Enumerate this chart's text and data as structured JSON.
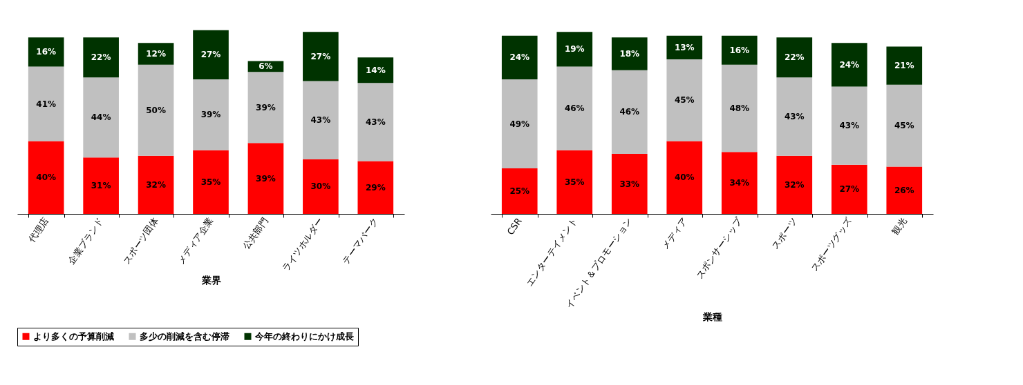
{
  "chart_data": [
    {
      "type": "bar",
      "stacked": true,
      "xlabel": "業界",
      "categories": [
        "代理店",
        "企業ブランド",
        "スポーツ団体",
        "メディア企業",
        "公共部門",
        "ライツホルダー",
        "テーマパーク"
      ],
      "series": [
        {
          "name": "より多くの予算削減",
          "color": "#ff0000",
          "values": [
            40,
            31,
            32,
            35,
            39,
            30,
            29
          ],
          "value_labels": [
            "40%",
            "31%",
            "32%",
            "35%",
            "39%",
            "30%",
            "29%"
          ]
        },
        {
          "name": "多少の削減を含む停滞",
          "color": "#c0c0c0",
          "values": [
            41,
            44,
            50,
            39,
            39,
            43,
            43
          ],
          "value_labels": [
            "41%",
            "44%",
            "50%",
            "39%",
            "39%",
            "43%",
            "43%"
          ]
        },
        {
          "name": "今年の終わりにかけ成長",
          "color": "#003300",
          "values": [
            16,
            22,
            12,
            27,
            6,
            27,
            14
          ],
          "value_labels": [
            "16%",
            "22%",
            "12%",
            "27%",
            "6%",
            "27%",
            "14%"
          ]
        }
      ],
      "legend": "bottom",
      "tick_labels": "x"
    },
    {
      "type": "bar",
      "stacked": true,
      "xlabel": "業種",
      "categories": [
        "CSR",
        "エンターテイメント",
        "イベント＆プロモーション",
        "メディア",
        "スポンサーシップ",
        "スポーツ",
        "スポーツグッズ",
        "観光"
      ],
      "series": [
        {
          "name": "より多くの予算削減",
          "color": "#ff0000",
          "values": [
            25,
            35,
            33,
            40,
            34,
            32,
            27,
            26
          ],
          "value_labels": [
            "25%",
            "35%",
            "33%",
            "40%",
            "34%",
            "32%",
            "27%",
            "26%"
          ]
        },
        {
          "name": "多少の削減を含む停滞",
          "color": "#c0c0c0",
          "values": [
            49,
            46,
            46,
            45,
            48,
            43,
            43,
            45
          ],
          "value_labels": [
            "49%",
            "46%",
            "46%",
            "45%",
            "48%",
            "43%",
            "43%",
            "45%"
          ]
        },
        {
          "name": "今年の終わりにかけ成長",
          "color": "#003300",
          "values": [
            24,
            19,
            18,
            13,
            16,
            22,
            24,
            21
          ],
          "value_labels": [
            "24%",
            "19%",
            "18%",
            "13%",
            "16%",
            "22%",
            "24%",
            "21%"
          ]
        }
      ],
      "legend": "bottom",
      "tick_labels": "x"
    }
  ]
}
